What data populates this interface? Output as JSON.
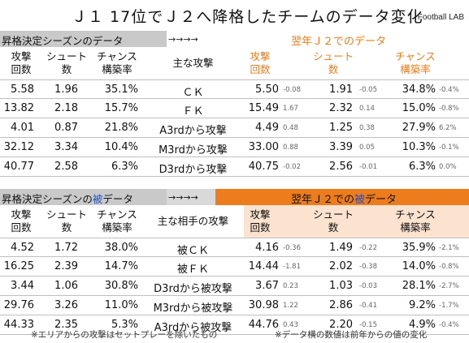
{
  "title": {
    "main": "Ｊ１ 17位でＪ２へ降格したチームのデータ変化",
    "brand": "Football LAB"
  },
  "section_a": {
    "left_header": "昇格決定シーズンのデータ",
    "arrow": "→→→→",
    "right_header": "翌年Ｊ２でのデータ",
    "columns_left": [
      "攻撃\n回数",
      "シュート\n数",
      "チャンス\n構築率"
    ],
    "column_mid": "主な攻撃",
    "columns_right": [
      "攻撃\n回数",
      "シュート\n数",
      "チャンス\n構築率"
    ],
    "rows": [
      {
        "att": "5.58",
        "shot": "1.96",
        "ch": "35.1%",
        "label": "ＣＫ",
        "att2": "5.50",
        "d_att": "-0.08",
        "shot2": "1.91",
        "d_shot": "-0.05",
        "ch2": "34.8%",
        "d_ch": "-0.4%"
      },
      {
        "att": "13.82",
        "shot": "2.18",
        "ch": "15.7%",
        "label": "ＦＫ",
        "att2": "15.49",
        "d_att": "1.67",
        "shot2": "2.32",
        "d_shot": "0.14",
        "ch2": "15.0%",
        "d_ch": "-0.8%"
      },
      {
        "att": "4.01",
        "shot": "0.87",
        "ch": "21.8%",
        "label": "A3rdから攻撃",
        "att2": "4.49",
        "d_att": "0.48",
        "shot2": "1.25",
        "d_shot": "0.38",
        "ch2": "27.9%",
        "d_ch": "6.2%"
      },
      {
        "att": "32.12",
        "shot": "3.34",
        "ch": "10.4%",
        "label": "M3rdから攻撃",
        "att2": "33.00",
        "d_att": "0.88",
        "shot2": "3.39",
        "d_shot": "0.05",
        "ch2": "10.3%",
        "d_ch": "-0.1%"
      },
      {
        "att": "40.77",
        "shot": "2.58",
        "ch": "6.3%",
        "label": "D3rdから攻撃",
        "att2": "40.75",
        "d_att": "-0.02",
        "shot2": "2.56",
        "d_shot": "-0.01",
        "ch2": "6.3%",
        "d_ch": "0.0%"
      }
    ]
  },
  "section_b": {
    "left_header_pre": "昇格決定シーズンの",
    "left_header_hl": "被",
    "left_header_post": "データ",
    "arrow": "→→→→",
    "right_header_pre": "翌年Ｊ２での",
    "right_header_hl": "被",
    "right_header_post": "データ",
    "columns_left": [
      "攻撃\n回数",
      "シュート\n数",
      "チャンス\n構築率"
    ],
    "column_mid": "主な相手の攻撃",
    "columns_right": [
      "攻撃\n回数",
      "シュート\n数",
      "チャンス\n構築率"
    ],
    "rows": [
      {
        "att": "4.52",
        "shot": "1.72",
        "ch": "38.0%",
        "label": "被ＣＫ",
        "att2": "4.16",
        "d_att": "-0.36",
        "shot2": "1.49",
        "d_shot": "-0.22",
        "ch2": "35.9%",
        "d_ch": "-2.1%"
      },
      {
        "att": "16.25",
        "shot": "2.39",
        "ch": "14.7%",
        "label": "被ＦＫ",
        "att2": "14.44",
        "d_att": "-1.81",
        "shot2": "2.02",
        "d_shot": "-0.38",
        "ch2": "14.0%",
        "d_ch": "-0.8%"
      },
      {
        "att": "3.44",
        "shot": "1.06",
        "ch": "30.8%",
        "label": "D3rdから被攻撃",
        "att2": "3.67",
        "d_att": "0.23",
        "shot2": "1.03",
        "d_shot": "-0.03",
        "ch2": "28.1%",
        "d_ch": "-2.7%"
      },
      {
        "att": "29.76",
        "shot": "3.26",
        "ch": "11.0%",
        "label": "M3rdから被攻撃",
        "att2": "30.98",
        "d_att": "1.22",
        "shot2": "2.86",
        "d_shot": "-0.41",
        "ch2": "9.2%",
        "d_ch": "-1.7%"
      },
      {
        "att": "44.33",
        "shot": "2.35",
        "ch": "5.3%",
        "label": "A3rdから被攻撃",
        "att2": "44.76",
        "d_att": "0.43",
        "shot2": "2.20",
        "d_shot": "-0.15",
        "ch2": "4.9%",
        "d_ch": "-0.4%"
      }
    ]
  },
  "notes": {
    "left": "※エリアからの攻撃はセットプレーを除いたもの",
    "right": "※データ横の数値は前年からの値の変化"
  }
}
